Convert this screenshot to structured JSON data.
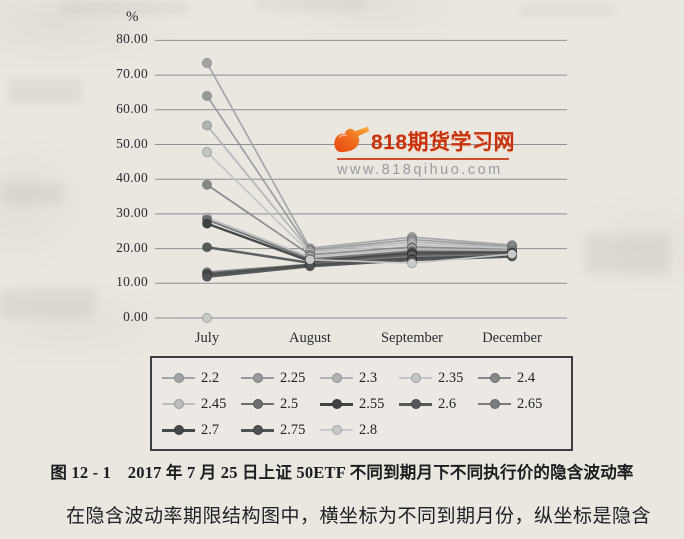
{
  "page": {
    "background_hex": "#eae6e0",
    "unit_label": "%"
  },
  "watermark": {
    "logo_icon": "pointing-hand-logo",
    "title": "818期货学习网",
    "url": "www.818qihuo.com",
    "title_color_hex": "#c9310d",
    "url_color_hex": "#9b9b9b"
  },
  "caption": "图 12 - 1　2017 年 7 月 25 日上证 50ETF 不同到期月下不同执行价的隐含波动率",
  "body_text": "在隐含波动率期限结构图中，横坐标为不同到期月份，纵坐标是隐含",
  "chart_data": {
    "type": "line",
    "title": "",
    "xlabel": "",
    "ylabel": "%",
    "categories": [
      "July",
      "August",
      "September",
      "December"
    ],
    "ylim": [
      0,
      80
    ],
    "ytick_labels": [
      "0.00",
      "10.00",
      "20.00",
      "30.00",
      "40.00",
      "50.00",
      "60.00",
      "70.00",
      "80.00"
    ],
    "grid": "horizontal",
    "gridline_color_hex": "#8f8f8f",
    "legend_position": "bottom-box",
    "series": [
      {
        "name": "2.2",
        "color": "#a4a4a4",
        "thick": false,
        "values": [
          73.5,
          20.1,
          23.3,
          21.0
        ]
      },
      {
        "name": "2.25",
        "color": "#999999",
        "thick": false,
        "values": [
          64.0,
          19.6,
          22.6,
          20.6
        ]
      },
      {
        "name": "2.3",
        "color": "#b3b3b3",
        "thick": false,
        "values": [
          55.5,
          19.2,
          21.9,
          20.3
        ]
      },
      {
        "name": "2.35",
        "color": "#c4c4c4",
        "thick": false,
        "values": [
          47.8,
          18.7,
          21.2,
          20.0
        ]
      },
      {
        "name": "2.4",
        "color": "#878787",
        "thick": false,
        "values": [
          38.4,
          18.2,
          20.5,
          19.7
        ]
      },
      {
        "name": "2.45",
        "color": "#bdbdbd",
        "thick": false,
        "values": [
          28.9,
          17.6,
          19.9,
          19.4
        ]
      },
      {
        "name": "2.5",
        "color": "#6e6e6e",
        "thick": false,
        "values": [
          28.3,
          17.0,
          19.3,
          19.1
        ]
      },
      {
        "name": "2.55",
        "color": "#414141",
        "thick": true,
        "values": [
          27.2,
          16.4,
          18.7,
          18.8
        ]
      },
      {
        "name": "2.6",
        "color": "#585858",
        "thick": true,
        "values": [
          20.4,
          15.9,
          18.2,
          18.5
        ]
      },
      {
        "name": "2.65",
        "color": "#7b7b7b",
        "thick": false,
        "values": [
          13.2,
          15.5,
          17.7,
          18.2
        ]
      },
      {
        "name": "2.7",
        "color": "#484848",
        "thick": true,
        "values": [
          12.6,
          15.2,
          17.2,
          17.9
        ]
      },
      {
        "name": "2.75",
        "color": "#515151",
        "thick": true,
        "values": [
          11.9,
          14.9,
          16.7,
          17.7
        ]
      },
      {
        "name": "2.8",
        "color": "#c9c9c9",
        "thick": false,
        "values": [
          0.0,
          16.8,
          15.8,
          18.4
        ],
        "line_start_index": 1
      }
    ]
  }
}
